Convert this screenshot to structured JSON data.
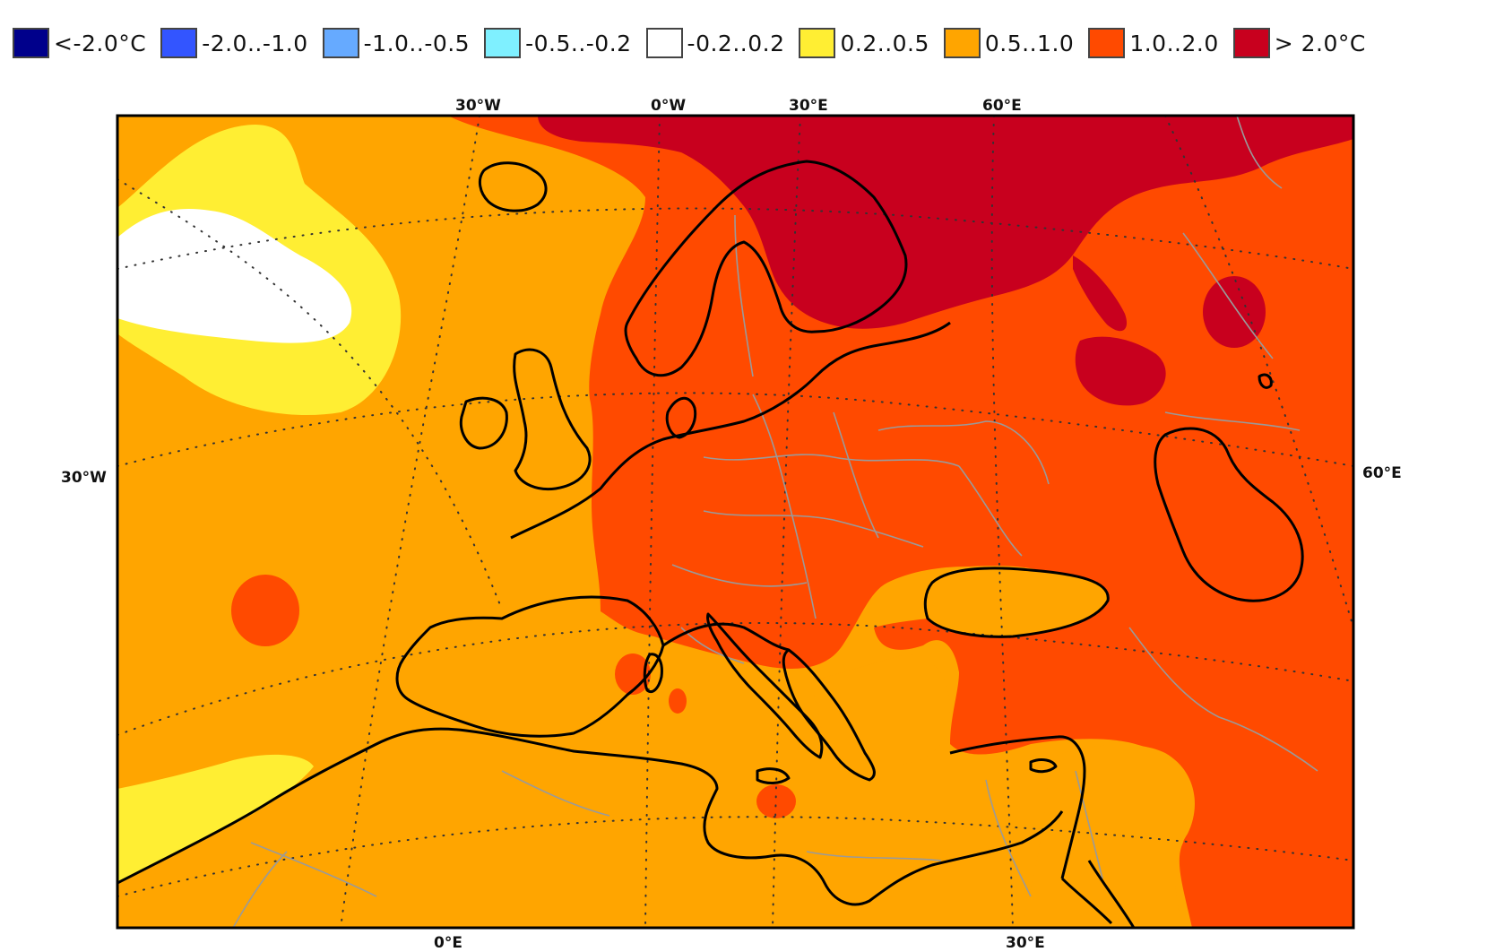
{
  "legend": [
    {
      "label": "<-2.0°C",
      "color": "#00008b"
    },
    {
      "label": "-2.0..-1.0",
      "color": "#3355ff"
    },
    {
      "label": "-1.0..-0.5",
      "color": "#66aaff"
    },
    {
      "label": "-0.5..-0.2",
      "color": "#7ff0ff"
    },
    {
      "label": "-0.2..0.2",
      "color": "#ffffff"
    },
    {
      "label": "0.2..0.5",
      "color": "#ffee33"
    },
    {
      "label": "0.5..1.0",
      "color": "#ffa500"
    },
    {
      "label": "1.0..2.0",
      "color": "#ff4a00"
    },
    {
      "label": "> 2.0°C",
      "color": "#c8001e"
    }
  ],
  "coordinate_labels": {
    "top": [
      "30°W",
      "0°W",
      "30°E",
      "60°E"
    ],
    "left": "30°W",
    "right": "60°E",
    "bottom": [
      "0°E",
      "30°E"
    ]
  },
  "colors": {
    "ocean_base": "#ffa500",
    "land": "#ff4a00",
    "coastline": "#000000",
    "borders": "#999999",
    "graticule": "#333333"
  }
}
